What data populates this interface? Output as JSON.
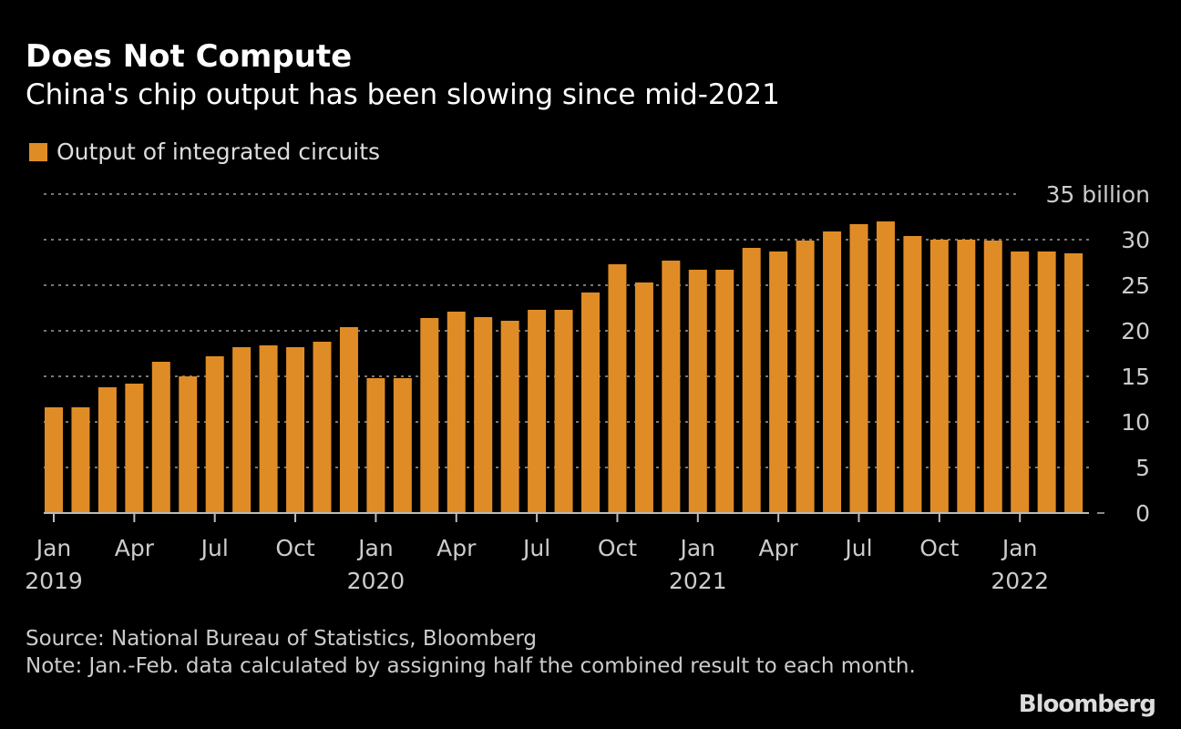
{
  "chart_data": {
    "type": "bar",
    "title": "Does Not Compute",
    "subtitle": "China's chip output has been slowing since mid-2021",
    "legend": [
      {
        "name": "Output of integrated circuits",
        "color": "#e08c26"
      }
    ],
    "legend_placement": "top-left",
    "yunit": "billion",
    "ylim": [
      0,
      35
    ],
    "yticks": [
      "0",
      "5",
      "10",
      "15",
      "20",
      "25",
      "30",
      "35 billion"
    ],
    "ytick_values": [
      0,
      5,
      10,
      15,
      20,
      25,
      30,
      35
    ],
    "grid": true,
    "categories": [
      "2019-01",
      "2019-02",
      "2019-03",
      "2019-04",
      "2019-05",
      "2019-06",
      "2019-07",
      "2019-08",
      "2019-09",
      "2019-10",
      "2019-11",
      "2019-12",
      "2020-01",
      "2020-02",
      "2020-03",
      "2020-04",
      "2020-05",
      "2020-06",
      "2020-07",
      "2020-08",
      "2020-09",
      "2020-10",
      "2020-11",
      "2020-12",
      "2021-01",
      "2021-02",
      "2021-03",
      "2021-04",
      "2021-05",
      "2021-06",
      "2021-07",
      "2021-08",
      "2021-09",
      "2021-10",
      "2021-11",
      "2021-12",
      "2022-01",
      "2022-02",
      "2022-03"
    ],
    "series": [
      {
        "name": "Output of integrated circuits",
        "values": [
          11.6,
          11.6,
          13.8,
          14.2,
          16.6,
          15.0,
          17.2,
          18.2,
          18.4,
          18.2,
          18.8,
          20.4,
          14.8,
          14.8,
          21.4,
          22.1,
          21.5,
          21.1,
          22.3,
          22.3,
          24.2,
          27.3,
          25.3,
          27.7,
          26.7,
          26.7,
          29.1,
          28.7,
          29.9,
          30.9,
          31.7,
          32.0,
          30.4,
          30.0,
          30.0,
          29.9,
          28.7,
          28.7,
          28.5
        ]
      }
    ],
    "xticks": [
      {
        "index": 0,
        "label": "Jan",
        "year": "2019"
      },
      {
        "index": 3,
        "label": "Apr"
      },
      {
        "index": 6,
        "label": "Jul"
      },
      {
        "index": 9,
        "label": "Oct"
      },
      {
        "index": 12,
        "label": "Jan",
        "year": "2020"
      },
      {
        "index": 15,
        "label": "Apr"
      },
      {
        "index": 18,
        "label": "Jul"
      },
      {
        "index": 21,
        "label": "Oct"
      },
      {
        "index": 24,
        "label": "Jan",
        "year": "2021"
      },
      {
        "index": 27,
        "label": "Apr"
      },
      {
        "index": 30,
        "label": "Jul"
      },
      {
        "index": 33,
        "label": "Oct"
      },
      {
        "index": 36,
        "label": "Jan",
        "year": "2022"
      }
    ]
  },
  "footer": {
    "source": "Source: National Bureau of Statistics, Bloomberg",
    "note": "Note: Jan.-Feb. data calculated by assigning half the combined result to each month.",
    "logo": "Bloomberg"
  }
}
